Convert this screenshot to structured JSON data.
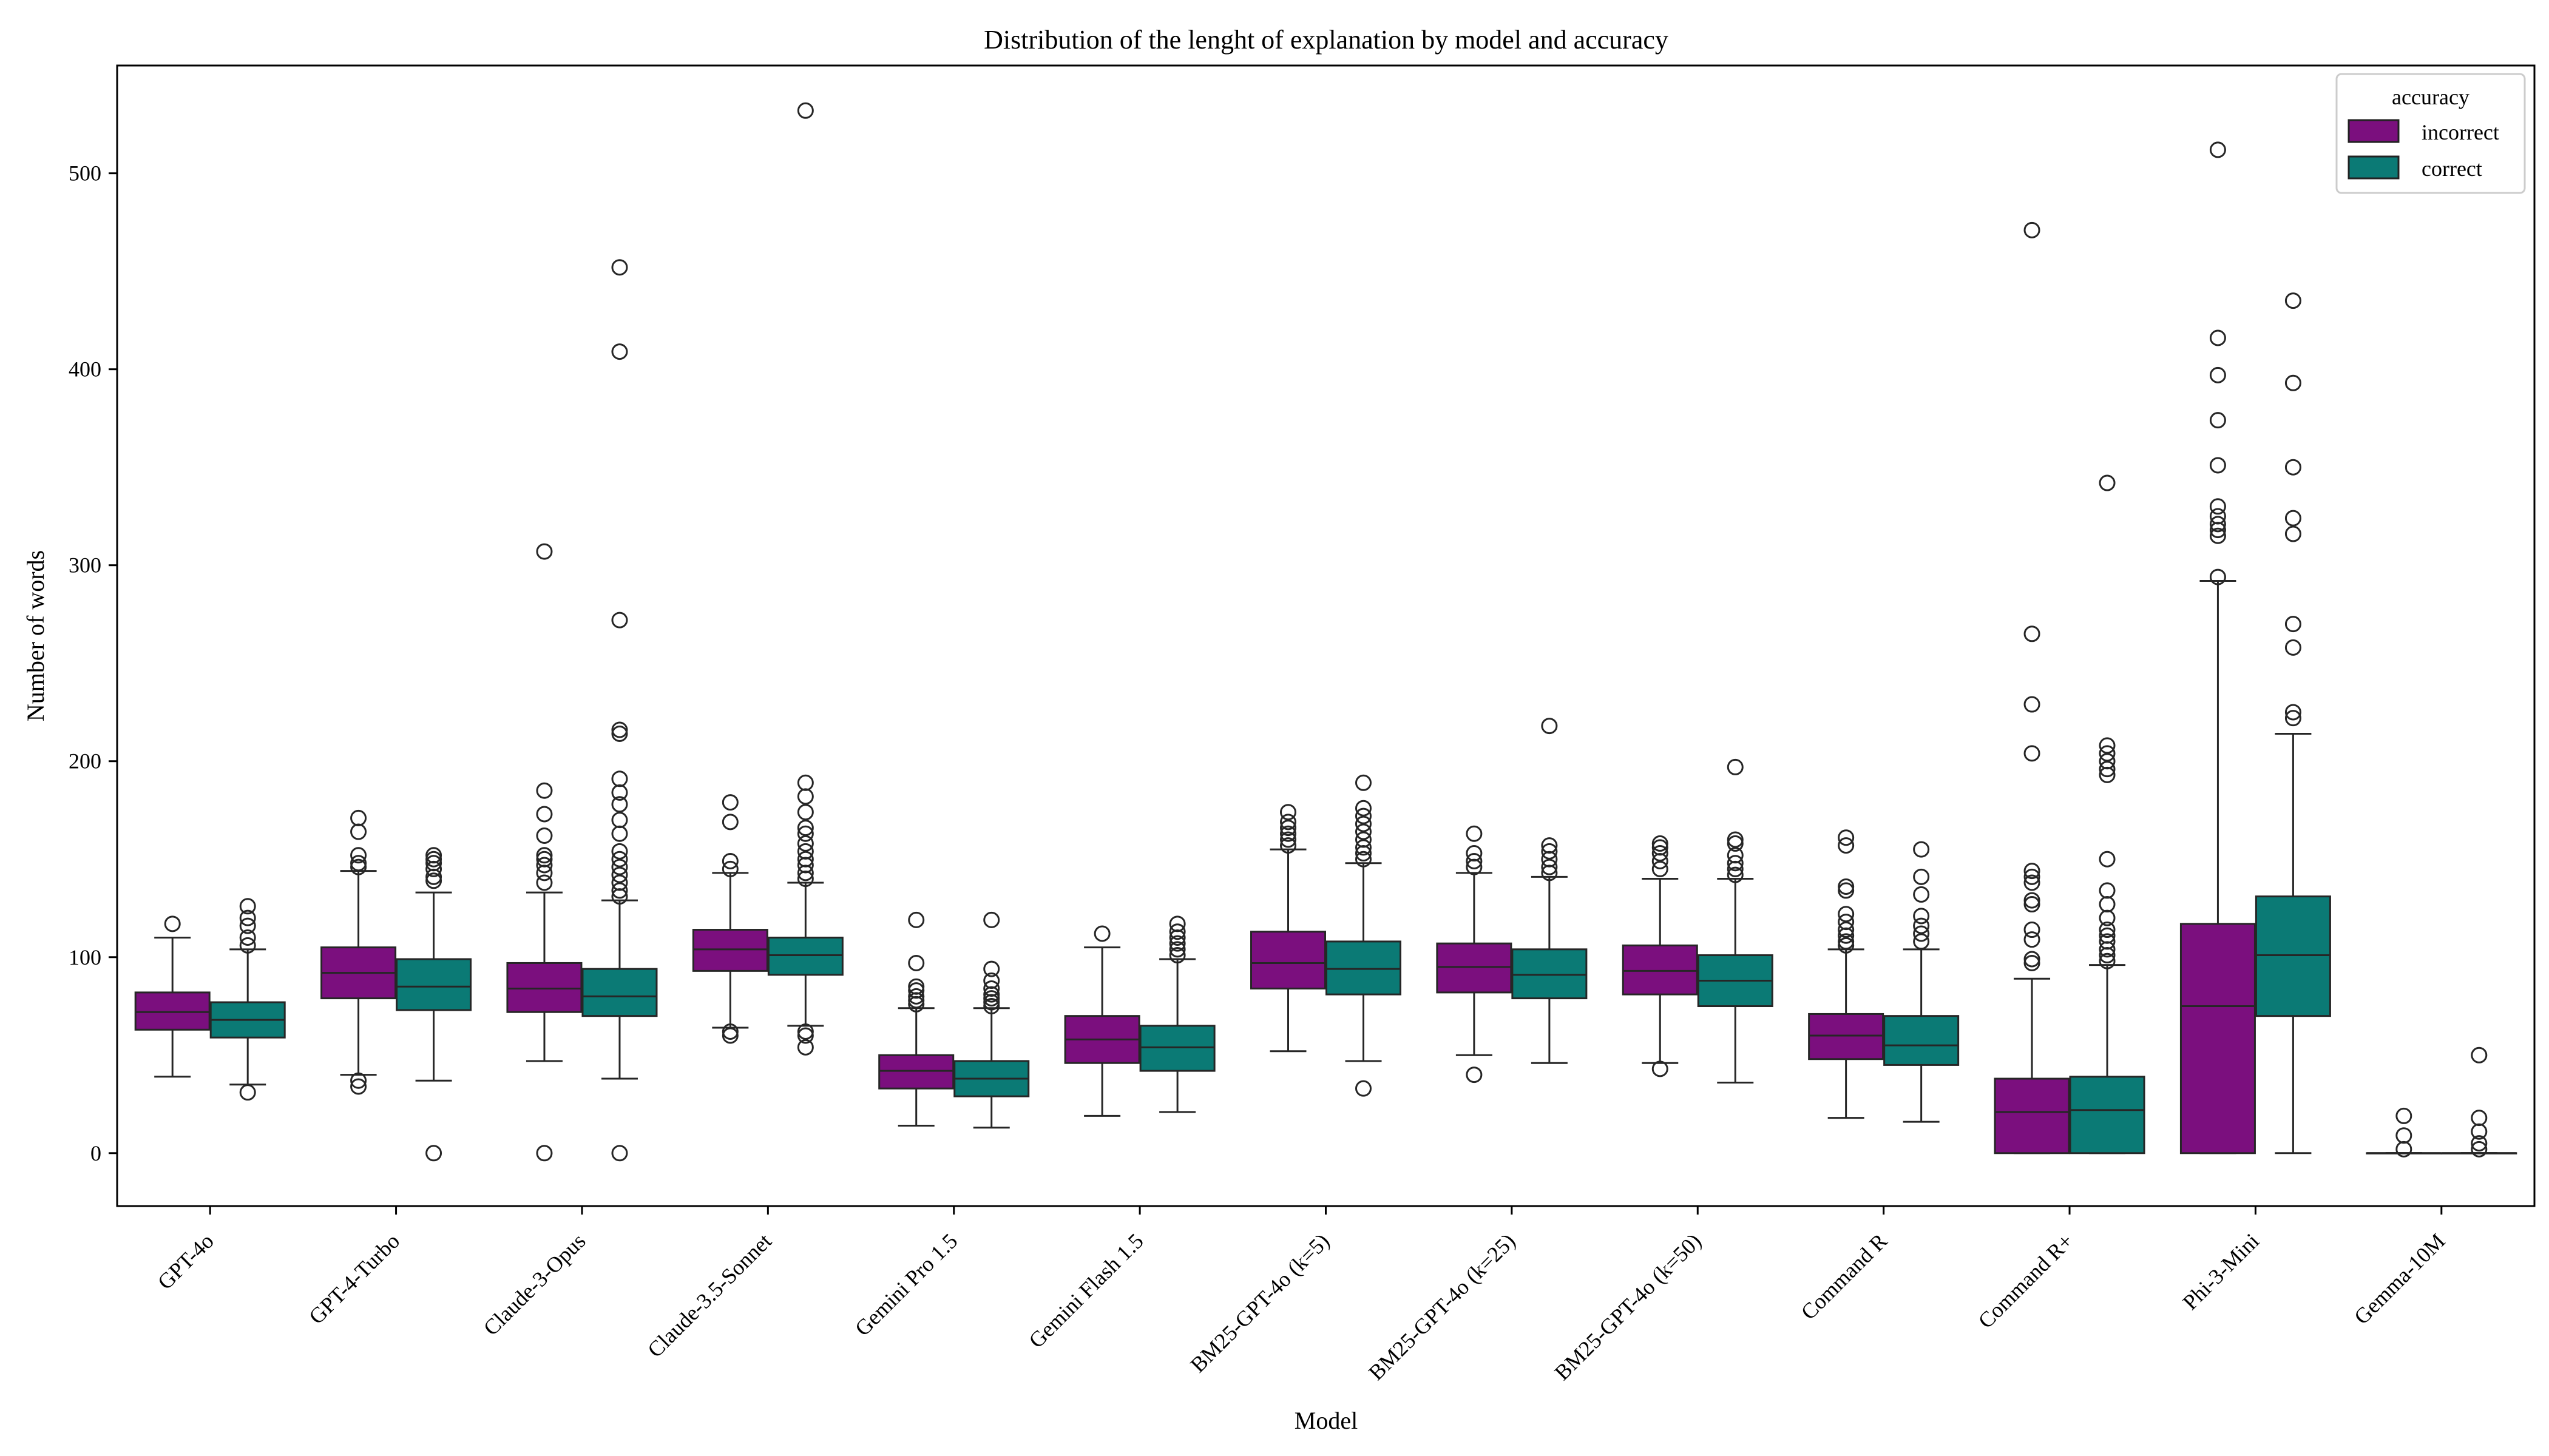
{
  "chart_data": {
    "type": "box",
    "title": "Distribution of the lenght of explanation by model and accuracy",
    "xlabel": "Model",
    "ylabel": "Number of words",
    "ylim": [
      -27,
      555
    ],
    "yticks": [
      0,
      100,
      200,
      300,
      400,
      500
    ],
    "grid": false,
    "legend": {
      "title": "accuracy",
      "position": "top-right",
      "entries": [
        {
          "name": "incorrect",
          "color": "#7b0f7e"
        },
        {
          "name": "correct",
          "color": "#0b7a75"
        }
      ]
    },
    "categories": [
      "GPT-4o",
      "GPT-4-Turbo",
      "Claude-3-Opus",
      "Claude-3.5-Sonnet",
      "Gemini Pro 1.5",
      "Gemini Flash 1.5",
      "BM25-GPT-4o (k=5)",
      "BM25-GPT-4o (k=25)",
      "BM25-GPT-4o (k=50)",
      "Command R",
      "Command R+",
      "Phi-3-Mini",
      "Gemma-10M"
    ],
    "series": [
      {
        "name": "incorrect",
        "color": "#7b0f7e",
        "boxes": [
          {
            "whislo": 39,
            "q1": 63,
            "med": 72,
            "q3": 82,
            "whishi": 110,
            "fliers": [
              117
            ]
          },
          {
            "whislo": 40,
            "q1": 79,
            "med": 92,
            "q3": 105,
            "whishi": 144,
            "fliers": [
              34,
              37,
              146,
              148,
              152,
              164,
              171
            ]
          },
          {
            "whislo": 47,
            "q1": 72,
            "med": 84,
            "q3": 97,
            "whishi": 133,
            "fliers": [
              0,
              138,
              143,
              147,
              150,
              152,
              162,
              173,
              185,
              307
            ]
          },
          {
            "whislo": 64,
            "q1": 93,
            "med": 104,
            "q3": 114,
            "whishi": 143,
            "fliers": [
              60,
              62,
              145,
              149,
              169,
              179
            ]
          },
          {
            "whislo": 14,
            "q1": 33,
            "med": 42,
            "q3": 50,
            "whishi": 74,
            "fliers": [
              76,
              78,
              80,
              83,
              85,
              97,
              119
            ]
          },
          {
            "whislo": 19,
            "q1": 46,
            "med": 58,
            "q3": 70,
            "whishi": 105,
            "fliers": [
              112
            ]
          },
          {
            "whislo": 52,
            "q1": 84,
            "med": 97,
            "q3": 113,
            "whishi": 155,
            "fliers": [
              157,
              160,
              163,
              166,
              169,
              174
            ]
          },
          {
            "whislo": 50,
            "q1": 82,
            "med": 95,
            "q3": 107,
            "whishi": 143,
            "fliers": [
              40,
              146,
              149,
              153,
              163
            ]
          },
          {
            "whislo": 46,
            "q1": 81,
            "med": 93,
            "q3": 106,
            "whishi": 140,
            "fliers": [
              43,
              145,
              149,
              153,
              156,
              158
            ]
          },
          {
            "whislo": 18,
            "q1": 48,
            "med": 60,
            "q3": 71,
            "whishi": 104,
            "fliers": [
              106,
              108,
              111,
              114,
              118,
              122,
              134,
              136,
              157,
              161
            ]
          },
          {
            "whislo": 0,
            "q1": 0,
            "med": 21,
            "q3": 38,
            "whishi": 89,
            "fliers": [
              97,
              99,
              109,
              114,
              127,
              129,
              138,
              141,
              144,
              204,
              229,
              265,
              471
            ]
          },
          {
            "whislo": 0,
            "q1": 0,
            "med": 75,
            "q3": 117,
            "whishi": 292,
            "fliers": [
              294,
              315,
              318,
              321,
              325,
              330,
              351,
              374,
              397,
              416,
              512
            ]
          },
          {
            "whislo": 0,
            "q1": 0,
            "med": 0,
            "q3": 0,
            "whishi": 0,
            "fliers": [
              2,
              9,
              19
            ]
          }
        ]
      },
      {
        "name": "correct",
        "color": "#0b7a75",
        "boxes": [
          {
            "whislo": 35,
            "q1": 59,
            "med": 68,
            "q3": 77,
            "whishi": 104,
            "fliers": [
              31,
              106,
              110,
              116,
              120,
              126
            ]
          },
          {
            "whislo": 37,
            "q1": 73,
            "med": 85,
            "q3": 99,
            "whishi": 133,
            "fliers": [
              0,
              139,
              141,
              145,
              148,
              150,
              152
            ]
          },
          {
            "whislo": 38,
            "q1": 70,
            "med": 80,
            "q3": 94,
            "whishi": 129,
            "fliers": [
              0,
              131,
              134,
              138,
              142,
              146,
              150,
              154,
              163,
              170,
              178,
              184,
              191,
              214,
              216,
              272,
              409,
              452
            ]
          },
          {
            "whislo": 65,
            "q1": 91,
            "med": 101,
            "q3": 110,
            "whishi": 138,
            "fliers": [
              54,
              60,
              62,
              140,
              143,
              147,
              150,
              154,
              158,
              163,
              166,
              174,
              182,
              189,
              532
            ]
          },
          {
            "whislo": 13,
            "q1": 29,
            "med": 38,
            "q3": 47,
            "whishi": 74,
            "fliers": [
              75,
              77,
              79,
              81,
              84,
              88,
              94,
              119
            ]
          },
          {
            "whislo": 21,
            "q1": 42,
            "med": 54,
            "q3": 65,
            "whishi": 99,
            "fliers": [
              101,
              104,
              107,
              110,
              113,
              117
            ]
          },
          {
            "whislo": 47,
            "q1": 81,
            "med": 94,
            "q3": 108,
            "whishi": 148,
            "fliers": [
              33,
              150,
              153,
              156,
              160,
              164,
              168,
              172,
              176,
              189
            ]
          },
          {
            "whislo": 46,
            "q1": 79,
            "med": 91,
            "q3": 104,
            "whishi": 141,
            "fliers": [
              143,
              146,
              150,
              154,
              157,
              218
            ]
          },
          {
            "whislo": 36,
            "q1": 75,
            "med": 88,
            "q3": 101,
            "whishi": 140,
            "fliers": [
              142,
              145,
              148,
              152,
              158,
              160,
              197
            ]
          },
          {
            "whislo": 16,
            "q1": 45,
            "med": 55,
            "q3": 70,
            "whishi": 104,
            "fliers": [
              108,
              112,
              116,
              121,
              132,
              141,
              155
            ]
          },
          {
            "whislo": 0,
            "q1": 0,
            "med": 22,
            "q3": 39,
            "whishi": 96,
            "fliers": [
              98,
              101,
              104,
              108,
              111,
              114,
              120,
              127,
              134,
              150,
              193,
              196,
              200,
              204,
              208,
              342
            ]
          },
          {
            "whislo": 0,
            "q1": 70,
            "med": 101,
            "q3": 131,
            "whishi": 214,
            "fliers": [
              222,
              225,
              258,
              270,
              316,
              324,
              350,
              393,
              435
            ]
          },
          {
            "whislo": 0,
            "q1": 0,
            "med": 0,
            "q3": 0,
            "whishi": 0,
            "fliers": [
              2,
              5,
              11,
              18,
              50
            ]
          }
        ]
      }
    ]
  }
}
